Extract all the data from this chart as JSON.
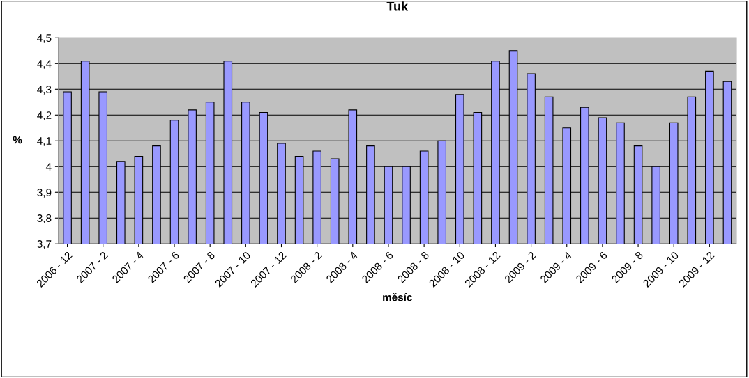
{
  "chart_data": {
    "type": "bar",
    "title": "Tuk",
    "xlabel": "měsíc",
    "ylabel": "%",
    "categories": [
      "2006 - 12",
      null,
      "2007 - 2",
      null,
      "2007 - 4",
      null,
      "2007 - 6",
      null,
      "2007 - 8",
      null,
      "2007 - 10",
      null,
      "2007 - 12",
      null,
      "2008 - 2",
      null,
      "2008 - 4",
      null,
      "2008 - 6",
      null,
      "2008 - 8",
      null,
      "2008 - 10",
      null,
      "2008 - 12",
      null,
      "2009 - 2",
      null,
      "2009 - 4",
      null,
      "2009 - 6",
      null,
      "2009 - 8",
      null,
      "2009 - 10",
      null,
      "2009 - 12",
      null
    ],
    "values": [
      4.29,
      4.41,
      4.29,
      4.02,
      4.04,
      4.08,
      4.18,
      4.22,
      4.25,
      4.41,
      4.25,
      4.21,
      4.09,
      4.04,
      4.06,
      4.03,
      4.22,
      4.08,
      4.0,
      4.0,
      4.06,
      4.1,
      4.28,
      4.21,
      4.41,
      4.45,
      4.36,
      4.27,
      4.15,
      4.23,
      4.19,
      4.17,
      4.08,
      4.0,
      4.17,
      4.27,
      4.37,
      4.33
    ],
    "color": "#9999ff",
    "ylim": [
      3.7,
      4.5
    ],
    "yticks": [
      {
        "value": 3.7,
        "label": "3,7"
      },
      {
        "value": 3.8,
        "label": "3,8"
      },
      {
        "value": 3.9,
        "label": "3,9"
      },
      {
        "value": 4,
        "label": "4"
      },
      {
        "value": 4.1,
        "label": "4,1"
      },
      {
        "value": 4.2,
        "label": "4,2"
      },
      {
        "value": 4.3,
        "label": "4,3"
      },
      {
        "value": 4.4,
        "label": "4,4"
      },
      {
        "value": 4.5,
        "label": "4,5"
      }
    ],
    "grid": "y",
    "legend": false
  }
}
